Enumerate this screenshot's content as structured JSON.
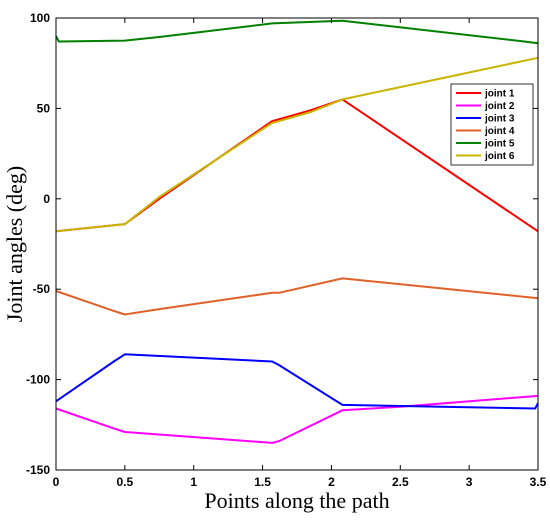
{
  "chart_data": {
    "type": "line",
    "title": "",
    "xlabel": "Points along the path",
    "ylabel": "Joint angles (deg)",
    "xlim": [
      0,
      3.5
    ],
    "ylim": [
      -150,
      100
    ],
    "x_ticks": [
      "0",
      "0.5",
      "1",
      "1.5",
      "2",
      "2.5",
      "3",
      "3.5"
    ],
    "y_ticks": [
      "100",
      "50",
      "0",
      "-50",
      "-100",
      "-150"
    ],
    "x_tick_values": [
      0,
      0.5,
      1,
      1.5,
      2,
      2.5,
      3,
      3.5
    ],
    "y_tick_values": [
      100,
      50,
      0,
      -50,
      -100,
      -150
    ],
    "grid": false,
    "legend_position": "top-right",
    "series": [
      {
        "name": "joint 1",
        "color": "#ff0000",
        "x": [
          0,
          0.5,
          0.75,
          1.57,
          1.62,
          1.85,
          2.08,
          3.5
        ],
        "y": [
          -18,
          -14,
          0,
          43,
          44,
          49,
          55,
          -18
        ]
      },
      {
        "name": "joint 2",
        "color": "#ff00ff",
        "x": [
          0,
          0.42,
          0.5,
          1.57,
          1.62,
          2.08,
          2.5,
          3.5
        ],
        "y": [
          -116,
          -127,
          -129,
          -135,
          -134,
          -117,
          -115,
          -109
        ]
      },
      {
        "name": "joint 3",
        "color": "#0000ff",
        "x": [
          0,
          0.42,
          0.5,
          1.57,
          1.62,
          2.08,
          3.48,
          3.5
        ],
        "y": [
          -112,
          -90,
          -86,
          -90,
          -92,
          -114,
          -116,
          -113
        ]
      },
      {
        "name": "joint 4",
        "color": "#e0602a",
        "x": [
          0,
          0.42,
          0.5,
          0.75,
          1.57,
          1.62,
          2.08,
          3.5
        ],
        "y": [
          -51,
          -62,
          -64,
          -61,
          -52,
          -52,
          -44,
          -55
        ]
      },
      {
        "name": "joint 5",
        "color": "#008000",
        "x": [
          0,
          0.02,
          0.5,
          0.75,
          1.57,
          2.08,
          3.4,
          3.5
        ],
        "y": [
          90,
          87,
          87.5,
          89.5,
          97,
          98.5,
          87,
          86
        ]
      },
      {
        "name": "joint 6",
        "color": "#c8b400",
        "x": [
          0,
          0.5,
          0.75,
          1.57,
          1.62,
          1.85,
          2.08,
          3.5
        ],
        "y": [
          -18,
          -14,
          1,
          42,
          43,
          48,
          55,
          78
        ]
      }
    ]
  }
}
